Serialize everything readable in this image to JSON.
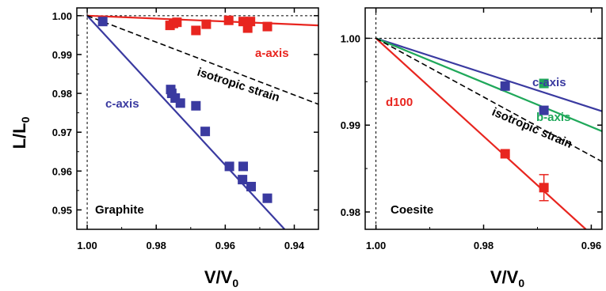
{
  "ylabel_main": "L/L",
  "ylabel_sub": "0",
  "chart_data": [
    {
      "type": "scatter",
      "panel_label": "Graphite",
      "xlabel_main": "V/V",
      "xlabel_sub": "0",
      "xlim": [
        1.003,
        0.933
      ],
      "ylim": [
        0.945,
        1.002
      ],
      "xticks": [
        1.0,
        0.98,
        0.96,
        0.94
      ],
      "xtick_labels": [
        "1.00",
        "0.98",
        "0.96",
        "0.94"
      ],
      "yticks": [
        0.95,
        0.96,
        0.97,
        0.98,
        0.99,
        1.0
      ],
      "ytick_labels": [
        "0.95",
        "0.96",
        "0.97",
        "0.98",
        "0.99",
        "1.00"
      ],
      "series": [
        {
          "name": "a-axis",
          "color": "#e8251f",
          "points": [
            [
              0.976,
              0.9975
            ],
            [
              0.975,
              0.998
            ],
            [
              0.974,
              0.9983
            ],
            [
              0.9685,
              0.9962
            ],
            [
              0.9655,
              0.9978
            ],
            [
              0.959,
              0.9988
            ],
            [
              0.9548,
              0.9985
            ],
            [
              0.9535,
              0.9968
            ],
            [
              0.9527,
              0.9985
            ],
            [
              0.9478,
              0.9972
            ]
          ],
          "fit": [
            [
              1.0,
              1.0
            ],
            [
              0.933,
              0.9975
            ]
          ]
        },
        {
          "name": "c-axis",
          "color": "#3a3aa0",
          "points": [
            [
              0.9955,
              0.9985
            ],
            [
              0.9758,
              0.981
            ],
            [
              0.9755,
              0.98
            ],
            [
              0.9745,
              0.9788
            ],
            [
              0.973,
              0.9775
            ],
            [
              0.9685,
              0.9768
            ],
            [
              0.9658,
              0.9702
            ],
            [
              0.9588,
              0.9612
            ],
            [
              0.9548,
              0.9612
            ],
            [
              0.955,
              0.9578
            ],
            [
              0.9525,
              0.956
            ],
            [
              0.9478,
              0.953
            ]
          ],
          "fit": [
            [
              1.0,
              1.0
            ],
            [
              0.9428,
              0.945
            ]
          ]
        },
        {
          "name": "isotropic strain",
          "color": "#000000",
          "dashed": true,
          "points": [],
          "fit": [
            [
              1.0,
              1.0
            ],
            [
              0.933,
              0.9772
            ]
          ]
        }
      ]
    },
    {
      "type": "scatter",
      "panel_label": "Coesite",
      "xlabel_main": "V/V",
      "xlabel_sub": "0",
      "xlim": [
        1.002,
        0.958
      ],
      "ylim": [
        0.978,
        1.0035
      ],
      "xticks": [
        1.0,
        0.98,
        0.96
      ],
      "xtick_labels": [
        "1.00",
        "0.98",
        "0.96"
      ],
      "yticks": [
        0.98,
        0.99,
        1.0
      ],
      "ytick_labels": [
        "0.98",
        "0.99",
        "1.00"
      ],
      "series": [
        {
          "name": "c-axis",
          "color": "#3a3aa0",
          "points": [
            [
              0.976,
              0.9945
            ],
            [
              0.9688,
              0.9917
            ]
          ],
          "fit": [
            [
              1.0,
              1.0
            ],
            [
              0.958,
              0.9916
            ]
          ]
        },
        {
          "name": "b-axis",
          "color": "#1fa85a",
          "points": [
            [
              0.9688,
              0.9948
            ]
          ],
          "fit": [
            [
              1.0,
              1.0
            ],
            [
              0.958,
              0.9893
            ]
          ]
        },
        {
          "name": "d100",
          "color": "#e8251f",
          "points": [
            [
              0.976,
              0.9867
            ],
            [
              0.9688,
              0.9828
            ]
          ],
          "error_bars": [
            [
              0.9688,
              0.9813,
              0.9843
            ]
          ],
          "fit": [
            [
              1.0,
              1.0
            ],
            [
              0.961,
              0.978
            ]
          ]
        },
        {
          "name": "isotropic strain",
          "color": "#000000",
          "dashed": true,
          "points": [],
          "fit": [
            [
              1.0,
              1.0
            ],
            [
              0.958,
              0.9858
            ]
          ]
        }
      ]
    }
  ]
}
